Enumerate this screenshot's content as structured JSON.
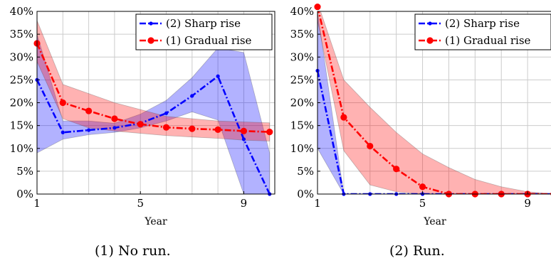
{
  "chart_data": [
    {
      "type": "line",
      "caption": "(1) No run.",
      "xlabel": "Year",
      "ylabel": "",
      "xlim": [
        1,
        10.2
      ],
      "ylim": [
        0,
        40
      ],
      "xticks": [
        1,
        5,
        9
      ],
      "yticks": [
        0,
        5,
        10,
        15,
        20,
        25,
        30,
        35,
        40
      ],
      "ytick_suffix": "%",
      "grid": true,
      "legend_position": "top-right",
      "series": [
        {
          "name": "(2) Sharp rise",
          "color": "#0000ff",
          "marker": "small-dot",
          "line_style": "dash-dot",
          "x": [
            1,
            2,
            3,
            4,
            5,
            6,
            7,
            8,
            9,
            10
          ],
          "y": [
            25,
            13.5,
            14,
            14.5,
            15.5,
            17.7,
            21.5,
            25.8,
            12,
            0
          ],
          "band_low": [
            9,
            12,
            13,
            13.5,
            14.5,
            16,
            18,
            16.2,
            0,
            0
          ],
          "band_high": [
            35,
            16,
            16,
            15.5,
            17.5,
            20.5,
            25.5,
            32,
            31,
            9
          ]
        },
        {
          "name": "(1) Gradual rise",
          "color": "#ff0000",
          "marker": "circle",
          "line_style": "dash-dot",
          "x": [
            1,
            2,
            3,
            4,
            5,
            6,
            7,
            8,
            9,
            10
          ],
          "y": [
            33,
            20,
            18.2,
            16.5,
            15.3,
            14.6,
            14.3,
            14.1,
            13.8,
            13.6
          ],
          "band_low": [
            29,
            16.5,
            14.5,
            13.8,
            13.3,
            12.8,
            12.5,
            12.2,
            11.8,
            11.6
          ],
          "band_high": [
            38,
            24,
            22,
            20,
            18.5,
            17,
            16.5,
            16,
            15.8,
            15.6
          ]
        }
      ]
    },
    {
      "type": "line",
      "caption": "(2) Run.",
      "xlabel": "Year",
      "ylabel": "",
      "xlim": [
        1,
        10
      ],
      "ylim": [
        0,
        40
      ],
      "xticks": [
        1,
        5,
        9
      ],
      "yticks": [
        0,
        5,
        10,
        15,
        20,
        25,
        30,
        35,
        40
      ],
      "ytick_suffix": "%",
      "grid": true,
      "legend_position": "top-right",
      "series": [
        {
          "name": "(2) Sharp rise",
          "color": "#0000ff",
          "marker": "small-dot",
          "line_style": "dash-dot",
          "x": [
            1,
            2,
            3,
            4,
            5,
            6,
            7,
            8,
            9,
            10
          ],
          "y": [
            27,
            0,
            0,
            0,
            0,
            0,
            0,
            0,
            0,
            0
          ],
          "band_low": [
            10,
            0,
            0,
            0,
            0,
            0,
            0,
            0,
            0,
            0
          ],
          "band_high": [
            40,
            0,
            0,
            0,
            0,
            0,
            0,
            0,
            0,
            0
          ]
        },
        {
          "name": "(1) Gradual rise",
          "color": "#ff0000",
          "marker": "circle",
          "line_style": "dash-dot",
          "x": [
            1,
            2,
            3,
            4,
            5,
            6,
            7,
            8,
            9,
            10
          ],
          "y": [
            41,
            16.8,
            10.5,
            5.5,
            1.6,
            0,
            0,
            0,
            0,
            0
          ],
          "band_low": [
            38,
            9.5,
            2,
            0.5,
            0,
            0,
            0,
            0,
            0,
            0
          ],
          "band_high": [
            42,
            25,
            19,
            13.5,
            8.8,
            5.8,
            3.2,
            1.6,
            0.5,
            0
          ]
        }
      ]
    }
  ]
}
